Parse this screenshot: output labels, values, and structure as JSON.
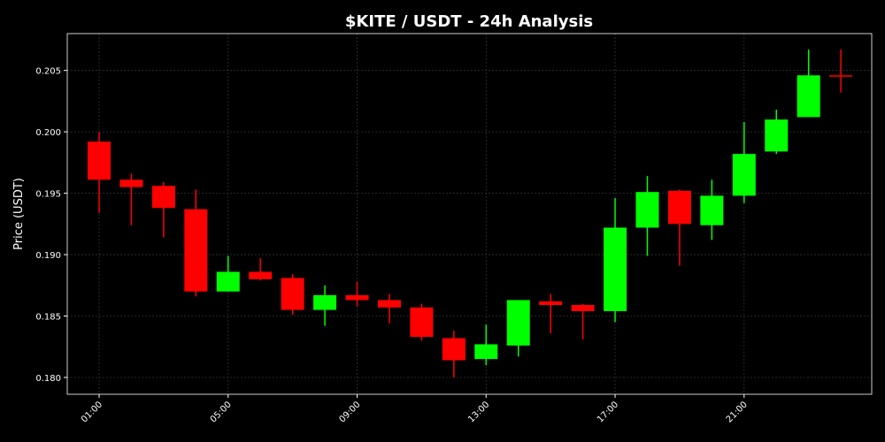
{
  "chart_data": {
    "type": "candlestick",
    "title": "$KITE / USDT - 24h Analysis",
    "y_label": "Price (USDT)",
    "categories": [
      "01:00",
      null,
      null,
      null,
      "05:00",
      null,
      null,
      null,
      "09:00",
      null,
      null,
      null,
      "13:00",
      null,
      null,
      null,
      "17:00",
      null,
      null,
      null,
      "21:00",
      null,
      null,
      null
    ],
    "open": [
      0.1992,
      0.1961,
      0.1956,
      0.1937,
      0.187,
      0.1886,
      0.1881,
      0.1855,
      0.1867,
      0.1863,
      0.1857,
      0.1832,
      0.1815,
      0.1826,
      0.1862,
      0.1859,
      0.1854,
      0.1922,
      0.1952,
      0.1924,
      0.1948,
      0.1984,
      0.2012,
      0.2046
    ],
    "high": [
      0.2,
      0.1966,
      0.1959,
      0.1953,
      0.1899,
      0.1897,
      0.1884,
      0.1875,
      0.1878,
      0.1868,
      0.186,
      0.1838,
      0.1843,
      0.1863,
      0.1868,
      0.186,
      0.1946,
      0.1964,
      0.1953,
      0.1961,
      0.2008,
      0.2018,
      0.2067,
      0.2067
    ],
    "low": [
      0.1934,
      0.1924,
      0.1914,
      0.1866,
      0.187,
      0.1879,
      0.1851,
      0.1842,
      0.1858,
      0.1844,
      0.183,
      0.18,
      0.181,
      0.1817,
      0.1836,
      0.1831,
      0.1845,
      0.1899,
      0.1891,
      0.1912,
      0.1942,
      0.1982,
      0.2012,
      0.2032
    ],
    "close": [
      0.1961,
      0.1955,
      0.1938,
      0.187,
      0.1886,
      0.188,
      0.1855,
      0.1867,
      0.1863,
      0.1857,
      0.1833,
      0.1814,
      0.1827,
      0.1863,
      0.1859,
      0.1854,
      0.1922,
      0.1951,
      0.1925,
      0.1948,
      0.1982,
      0.201,
      0.2046,
      0.2046
    ],
    "up_color": "#00ff00",
    "down_color": "#ff0000",
    "ylim": [
      0.17863,
      0.208
    ],
    "yticks": [
      {
        "value": 0.18,
        "label": "0.180"
      },
      {
        "value": 0.185,
        "label": "0.185"
      },
      {
        "value": 0.19,
        "label": "0.190"
      },
      {
        "value": 0.195,
        "label": "0.195"
      },
      {
        "value": 0.2,
        "label": "0.200"
      },
      {
        "value": 0.205,
        "label": "0.205"
      }
    ],
    "grid": true
  }
}
